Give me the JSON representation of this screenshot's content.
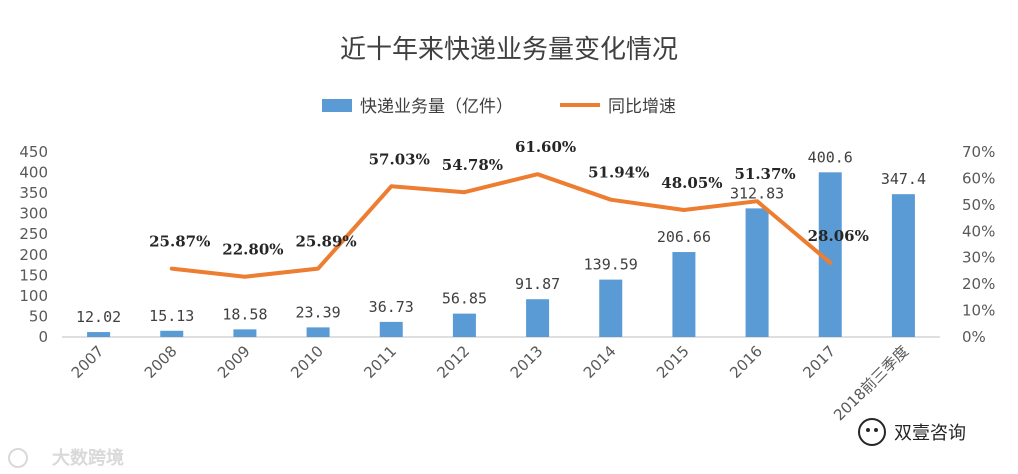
{
  "chart_data": {
    "type": "bar+line",
    "title": "近十年来快递业务量变化情况",
    "categories": [
      "2007",
      "2008",
      "2009",
      "2010",
      "2011",
      "2012",
      "2013",
      "2014",
      "2015",
      "2016",
      "2017",
      "2018前三季度"
    ],
    "series": [
      {
        "name": "快递业务量（亿件）",
        "type": "bar",
        "axis": "left",
        "color": "#5b9bd5",
        "values": [
          12.02,
          15.13,
          18.58,
          23.39,
          36.73,
          56.85,
          91.87,
          139.59,
          206.66,
          312.83,
          400.6,
          347.4
        ],
        "labels": [
          "12.02",
          "15.13",
          "18.58",
          "23.39",
          "36.73",
          "56.85",
          "91.87",
          "139.59",
          "206.66",
          "312.83",
          "400.6",
          "347.4"
        ]
      },
      {
        "name": "同比增速",
        "type": "line",
        "axis": "right",
        "color": "#ed7d31",
        "values": [
          null,
          25.87,
          22.8,
          25.89,
          57.03,
          54.78,
          61.6,
          51.94,
          48.05,
          51.37,
          28.06,
          null
        ],
        "labels": [
          null,
          "25.87%",
          "22.80%",
          "25.89%",
          "57.03%",
          "54.78%",
          "61.60%",
          "51.94%",
          "48.05%",
          "51.37%",
          "28.06%",
          null
        ]
      }
    ],
    "y_left": {
      "min": 0,
      "max": 450,
      "ticks": [
        "0",
        "50",
        "100",
        "150",
        "200",
        "250",
        "300",
        "350",
        "400",
        "450"
      ]
    },
    "y_right": {
      "min": 0,
      "max": 70,
      "ticks": [
        "0%",
        "10%",
        "20%",
        "30%",
        "40%",
        "50%",
        "60%",
        "70%"
      ]
    },
    "legend_position": "top-center",
    "grid": false
  },
  "watermarks": {
    "left": "大数跨境",
    "right": "双壹咨询"
  }
}
